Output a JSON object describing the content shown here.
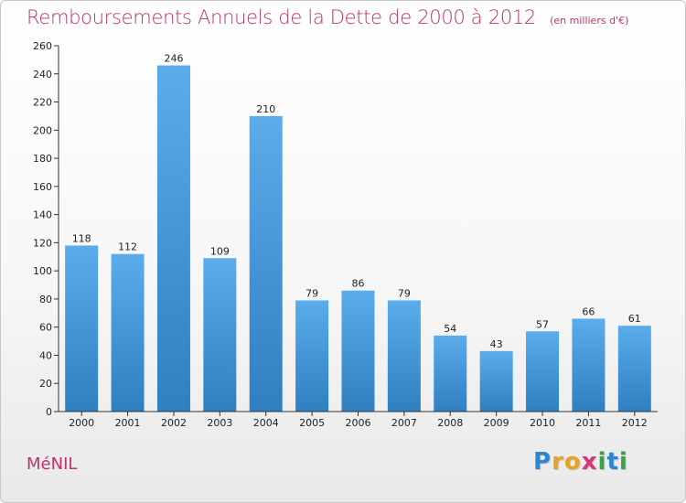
{
  "chart_data": {
    "type": "bar",
    "title": "Remboursements Annuels de la Dette de 2000 à 2012",
    "subtitle": "(en milliers d'€)",
    "categories": [
      "2000",
      "2001",
      "2002",
      "2003",
      "2004",
      "2005",
      "2006",
      "2007",
      "2008",
      "2009",
      "2010",
      "2011",
      "2012"
    ],
    "values": [
      118,
      112,
      246,
      109,
      210,
      79,
      86,
      79,
      54,
      43,
      57,
      66,
      61
    ],
    "ylim": [
      0,
      260
    ],
    "yticks": [
      0,
      20,
      40,
      60,
      80,
      100,
      120,
      140,
      160,
      180,
      200,
      220,
      240,
      260
    ],
    "xlabel": "",
    "ylabel": "",
    "grid": false,
    "bar_color_top": "#5aaceb",
    "bar_color_bottom": "#2f7fc1"
  },
  "footer": {
    "commune": "MéNIL",
    "logo_letters": [
      {
        "char": "P",
        "color": "#2a86d1"
      },
      {
        "char": "r",
        "color": "#e8a321"
      },
      {
        "char": "o",
        "color": "#e8a321"
      },
      {
        "char": "x",
        "color": "#d8357a"
      },
      {
        "char": "i",
        "color": "#3aa34a"
      },
      {
        "char": "t",
        "color": "#2a86d1"
      },
      {
        "char": "i",
        "color": "#3aa34a"
      }
    ]
  },
  "colors": {
    "accent": "#c2306b",
    "axis": "#333333"
  }
}
